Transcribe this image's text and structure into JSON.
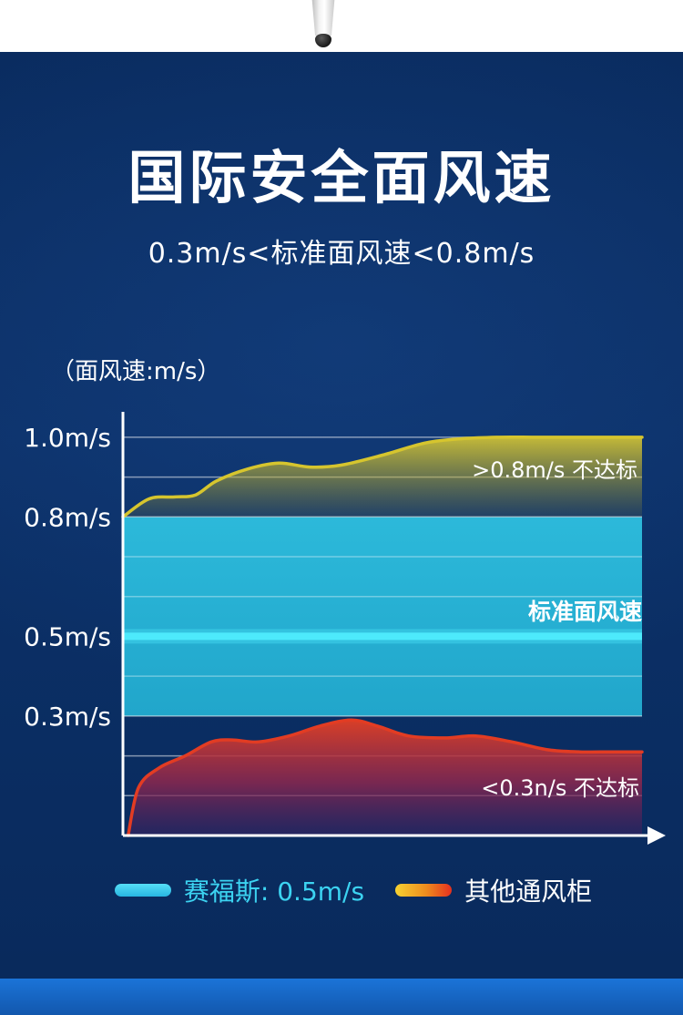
{
  "header": {
    "title": "国际安全面风速",
    "subtitle": "0.3m/s<标准面风速<0.8m/s"
  },
  "chart": {
    "axis_label": "（面风速:m/s）",
    "annotation_above": ">0.8m/s 不达标",
    "annotation_standard": "标准面风速",
    "annotation_below": "<0.3n/s 不达标"
  },
  "legend": {
    "items": [
      {
        "label": "赛福斯: 0.5m/s",
        "text_color": "#3cd3f1",
        "swatch_color": "#3fd4f2"
      },
      {
        "label": "其他通风柜",
        "text_color": "#ffffff",
        "swatch_color": "gradient yellow-orange-red"
      }
    ]
  },
  "colors": {
    "background": "#0b2e63",
    "bottom_strip": "#1767c9",
    "standard_band": "#28b6d8",
    "standard_line": "#4deafc",
    "above_series_line": "#d6c52e",
    "below_series_line": "#e23c23",
    "axis": "#ffffff"
  },
  "chart_data": {
    "type": "area",
    "title": "国际安全面风速",
    "ylabel": "面风速 (m/s)",
    "xlabel": "",
    "ylim": [
      0,
      1.05
    ],
    "grid": true,
    "legend_position": "bottom",
    "yticks": [
      {
        "label": "1.0m/s",
        "value": 1.0
      },
      {
        "label": "0.8m/s",
        "value": 0.8
      },
      {
        "label": "0.5m/s",
        "value": 0.5
      },
      {
        "label": "0.3m/s",
        "value": 0.3
      }
    ],
    "gridlines": [
      1.0,
      0.9,
      0.8,
      0.3,
      0.2,
      0.1
    ],
    "standard_band": {
      "min": 0.3,
      "max": 0.8,
      "standard": 0.5,
      "inner_gridlines": [
        0.4,
        0.6,
        0.7
      ],
      "label": "标准面风速"
    },
    "series": [
      {
        "name": "其他通风柜 (>0.8m/s 不达标)",
        "line_color": "#d6c52e",
        "baseline": 0.8,
        "x": [
          0,
          0.05,
          0.1,
          0.14,
          0.18,
          0.24,
          0.3,
          0.36,
          0.42,
          0.5,
          0.58,
          0.64,
          0.72,
          0.8,
          0.9,
          1
        ],
        "values": [
          0.8,
          0.845,
          0.85,
          0.855,
          0.89,
          0.92,
          0.935,
          0.925,
          0.93,
          0.955,
          0.985,
          0.995,
          1.0,
          1.0,
          1.0,
          1.0
        ]
      },
      {
        "name": "其他通风柜 (<0.3m/s 不达标)",
        "line_color": "#e23c23",
        "baseline": 0,
        "x": [
          0.01,
          0.03,
          0.07,
          0.12,
          0.17,
          0.21,
          0.26,
          0.32,
          0.38,
          0.44,
          0.49,
          0.55,
          0.62,
          0.68,
          0.75,
          0.82,
          0.88,
          0.94,
          1
        ],
        "values": [
          0.0,
          0.12,
          0.17,
          0.2,
          0.235,
          0.24,
          0.235,
          0.25,
          0.275,
          0.29,
          0.275,
          0.25,
          0.245,
          0.25,
          0.235,
          0.215,
          0.21,
          0.21,
          0.21
        ]
      },
      {
        "name": "赛福斯",
        "line_color": "#4deafc",
        "constant_value": 0.5
      }
    ]
  }
}
